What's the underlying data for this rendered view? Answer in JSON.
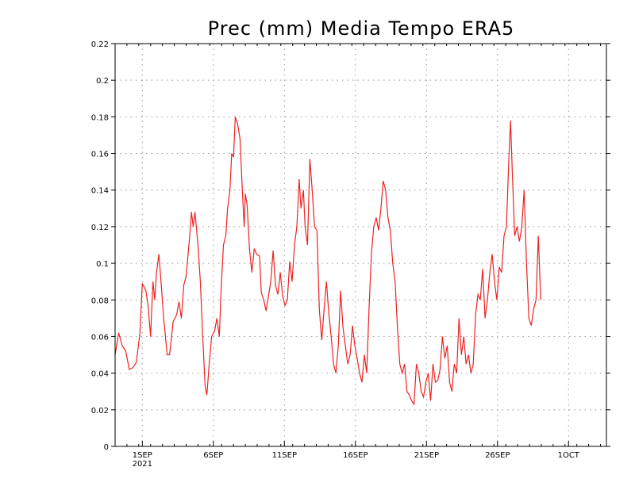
{
  "chart_data": {
    "type": "line",
    "title": "Prec (mm) Media Tempo ERA5",
    "xlabel": "",
    "ylabel": "",
    "ylim": [
      0,
      0.22
    ],
    "x_range_days": [
      0,
      41.5
    ],
    "y_ticks": [
      0,
      0.02,
      0.04,
      0.06,
      0.08,
      0.1,
      0.12,
      0.14,
      0.16,
      0.18,
      0.2,
      0.22
    ],
    "y_tick_labels": [
      "0",
      "0.02",
      "0.04",
      "0.06",
      "0.08",
      "0.1",
      "0.12",
      "0.14",
      "0.16",
      "0.18",
      "0.2",
      "0.22"
    ],
    "x_ticks": [
      {
        "day": 2.3,
        "label": "1SEP",
        "sublabel": "2021"
      },
      {
        "day": 8.3,
        "label": "6SEP",
        "sublabel": ""
      },
      {
        "day": 14.3,
        "label": "11SEP",
        "sublabel": ""
      },
      {
        "day": 20.3,
        "label": "16SEP",
        "sublabel": ""
      },
      {
        "day": 26.3,
        "label": "21SEP",
        "sublabel": ""
      },
      {
        "day": 32.3,
        "label": "26SEP",
        "sublabel": ""
      },
      {
        "day": 38.3,
        "label": "1OCT",
        "sublabel": ""
      }
    ],
    "grid": true,
    "series": [
      {
        "name": "Prec (mm)",
        "color": "#ee2222",
        "points": [
          [
            0,
            0.05
          ],
          [
            0.3,
            0.062
          ],
          [
            0.6,
            0.055
          ],
          [
            0.9,
            0.052
          ],
          [
            1.2,
            0.042
          ],
          [
            1.5,
            0.043
          ],
          [
            1.8,
            0.046
          ],
          [
            2.1,
            0.062
          ],
          [
            2.3,
            0.089
          ],
          [
            2.6,
            0.085
          ],
          [
            2.8,
            0.076
          ],
          [
            3.0,
            0.06
          ],
          [
            3.2,
            0.09
          ],
          [
            3.35,
            0.08
          ],
          [
            3.5,
            0.095
          ],
          [
            3.7,
            0.105
          ],
          [
            3.9,
            0.088
          ],
          [
            4.1,
            0.07
          ],
          [
            4.4,
            0.05
          ],
          [
            4.6,
            0.05
          ],
          [
            4.9,
            0.068
          ],
          [
            5.2,
            0.072
          ],
          [
            5.4,
            0.079
          ],
          [
            5.6,
            0.07
          ],
          [
            5.8,
            0.088
          ],
          [
            6.0,
            0.093
          ],
          [
            6.3,
            0.115
          ],
          [
            6.45,
            0.128
          ],
          [
            6.6,
            0.12
          ],
          [
            6.75,
            0.128
          ],
          [
            7.0,
            0.11
          ],
          [
            7.2,
            0.09
          ],
          [
            7.4,
            0.06
          ],
          [
            7.6,
            0.033
          ],
          [
            7.75,
            0.028
          ],
          [
            7.95,
            0.045
          ],
          [
            8.15,
            0.06
          ],
          [
            8.4,
            0.063
          ],
          [
            8.6,
            0.07
          ],
          [
            8.8,
            0.06
          ],
          [
            8.95,
            0.085
          ],
          [
            9.15,
            0.11
          ],
          [
            9.35,
            0.115
          ],
          [
            9.5,
            0.13
          ],
          [
            9.7,
            0.14
          ],
          [
            9.85,
            0.16
          ],
          [
            10.0,
            0.158
          ],
          [
            10.15,
            0.18
          ],
          [
            10.35,
            0.176
          ],
          [
            10.55,
            0.168
          ],
          [
            10.75,
            0.14
          ],
          [
            10.9,
            0.12
          ],
          [
            11.0,
            0.138
          ],
          [
            11.15,
            0.132
          ],
          [
            11.35,
            0.108
          ],
          [
            11.55,
            0.095
          ],
          [
            11.75,
            0.108
          ],
          [
            11.95,
            0.105
          ],
          [
            12.2,
            0.104
          ],
          [
            12.35,
            0.084
          ],
          [
            12.55,
            0.08
          ],
          [
            12.75,
            0.074
          ],
          [
            12.95,
            0.082
          ],
          [
            13.15,
            0.09
          ],
          [
            13.35,
            0.107
          ],
          [
            13.55,
            0.088
          ],
          [
            13.75,
            0.083
          ],
          [
            13.95,
            0.095
          ],
          [
            14.15,
            0.082
          ],
          [
            14.35,
            0.077
          ],
          [
            14.55,
            0.08
          ],
          [
            14.75,
            0.101
          ],
          [
            14.95,
            0.09
          ],
          [
            15.15,
            0.11
          ],
          [
            15.35,
            0.12
          ],
          [
            15.55,
            0.146
          ],
          [
            15.7,
            0.13
          ],
          [
            15.9,
            0.14
          ],
          [
            16.05,
            0.12
          ],
          [
            16.25,
            0.11
          ],
          [
            16.45,
            0.157
          ],
          [
            16.65,
            0.14
          ],
          [
            16.85,
            0.12
          ],
          [
            17.05,
            0.118
          ],
          [
            17.25,
            0.075
          ],
          [
            17.45,
            0.058
          ],
          [
            17.65,
            0.075
          ],
          [
            17.85,
            0.09
          ],
          [
            18.05,
            0.073
          ],
          [
            18.25,
            0.06
          ],
          [
            18.45,
            0.045
          ],
          [
            18.65,
            0.04
          ],
          [
            18.85,
            0.055
          ],
          [
            19.05,
            0.085
          ],
          [
            19.25,
            0.065
          ],
          [
            19.45,
            0.055
          ],
          [
            19.65,
            0.045
          ],
          [
            19.85,
            0.05
          ],
          [
            20.05,
            0.066
          ],
          [
            20.25,
            0.055
          ],
          [
            20.45,
            0.048
          ],
          [
            20.65,
            0.04
          ],
          [
            20.85,
            0.035
          ],
          [
            21.05,
            0.05
          ],
          [
            21.25,
            0.04
          ],
          [
            21.45,
            0.075
          ],
          [
            21.65,
            0.105
          ],
          [
            21.85,
            0.12
          ],
          [
            22.05,
            0.125
          ],
          [
            22.25,
            0.118
          ],
          [
            22.45,
            0.13
          ],
          [
            22.65,
            0.145
          ],
          [
            22.85,
            0.14
          ],
          [
            23.05,
            0.125
          ],
          [
            23.25,
            0.118
          ],
          [
            23.45,
            0.1
          ],
          [
            23.65,
            0.09
          ],
          [
            23.85,
            0.065
          ],
          [
            24.05,
            0.045
          ],
          [
            24.25,
            0.04
          ],
          [
            24.45,
            0.045
          ],
          [
            24.65,
            0.03
          ],
          [
            24.85,
            0.028
          ],
          [
            25.05,
            0.025
          ],
          [
            25.25,
            0.023
          ],
          [
            25.45,
            0.045
          ],
          [
            25.65,
            0.04
          ],
          [
            25.85,
            0.03
          ],
          [
            26.05,
            0.027
          ],
          [
            26.25,
            0.035
          ],
          [
            26.45,
            0.04
          ],
          [
            26.65,
            0.025
          ],
          [
            26.85,
            0.045
          ],
          [
            27.05,
            0.035
          ],
          [
            27.25,
            0.036
          ],
          [
            27.45,
            0.042
          ],
          [
            27.65,
            0.06
          ],
          [
            27.85,
            0.048
          ],
          [
            28.05,
            0.055
          ],
          [
            28.25,
            0.035
          ],
          [
            28.45,
            0.03
          ],
          [
            28.65,
            0.045
          ],
          [
            28.85,
            0.04
          ],
          [
            29.05,
            0.07
          ],
          [
            29.25,
            0.05
          ],
          [
            29.45,
            0.06
          ],
          [
            29.65,
            0.045
          ],
          [
            29.85,
            0.05
          ],
          [
            30.05,
            0.04
          ],
          [
            30.25,
            0.045
          ],
          [
            30.45,
            0.072
          ],
          [
            30.65,
            0.083
          ],
          [
            30.85,
            0.08
          ],
          [
            31.05,
            0.097
          ],
          [
            31.25,
            0.07
          ],
          [
            31.45,
            0.08
          ],
          [
            31.65,
            0.095
          ],
          [
            31.85,
            0.105
          ],
          [
            32.05,
            0.09
          ],
          [
            32.25,
            0.08
          ],
          [
            32.45,
            0.098
          ],
          [
            32.65,
            0.095
          ],
          [
            32.85,
            0.115
          ],
          [
            33.05,
            0.12
          ],
          [
            33.25,
            0.155
          ],
          [
            33.4,
            0.178
          ],
          [
            33.55,
            0.15
          ],
          [
            33.75,
            0.115
          ],
          [
            33.95,
            0.12
          ],
          [
            34.15,
            0.112
          ],
          [
            34.35,
            0.12
          ],
          [
            34.55,
            0.14
          ],
          [
            34.75,
            0.1
          ],
          [
            34.95,
            0.07
          ],
          [
            35.15,
            0.066
          ],
          [
            35.35,
            0.075
          ],
          [
            35.55,
            0.08
          ],
          [
            35.75,
            0.115
          ],
          [
            35.95,
            0.08
          ]
        ]
      }
    ]
  }
}
